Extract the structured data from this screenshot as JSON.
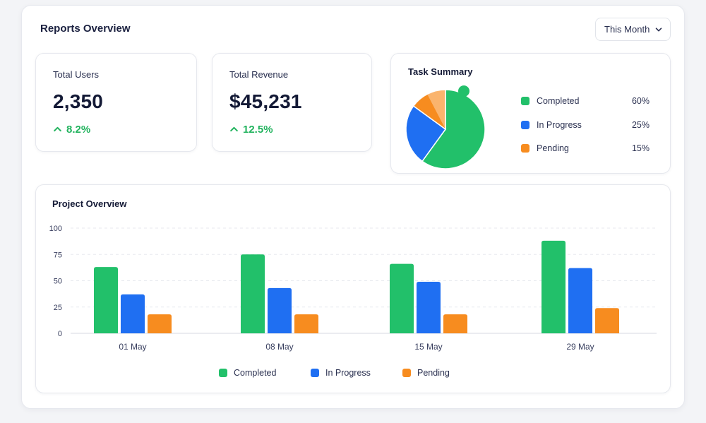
{
  "header": {
    "title": "Reports Overview"
  },
  "period_filter": {
    "value": "This Month"
  },
  "stats": [
    {
      "label": "Total Users",
      "value": "2,350",
      "change": "8.2%"
    },
    {
      "label": "Total Revenue",
      "value": "$45,231",
      "change": "12.5%"
    }
  ],
  "task_summary": {
    "title": "Task Summary",
    "items": [
      {
        "label": "Completed",
        "percent": "60%",
        "value": 60,
        "color": "#22c06a"
      },
      {
        "label": "In Progress",
        "percent": "25%",
        "value": 25,
        "color": "#1f6ff2"
      },
      {
        "label": "Pending",
        "percent": "15%",
        "value": 15,
        "color": "#f78c1f"
      }
    ]
  },
  "project_overview": {
    "title": "Project Overview",
    "legend": [
      "Completed",
      "In Progress",
      "Pending"
    ]
  },
  "chart_data": {
    "type": "bar",
    "categories": [
      "01 May",
      "08 May",
      "15 May",
      "29 May"
    ],
    "series": [
      {
        "name": "Completed",
        "values": [
          63,
          75,
          66,
          88
        ],
        "color": "#22c06a"
      },
      {
        "name": "In Progress",
        "values": [
          37,
          43,
          49,
          62
        ],
        "color": "#1f6ff2"
      },
      {
        "name": "Pending",
        "values": [
          18,
          18,
          18,
          24
        ],
        "color": "#f78c1f"
      }
    ],
    "ylim": [
      0,
      100
    ],
    "yticks": [
      0,
      25,
      50,
      75,
      100
    ],
    "grid": true,
    "legend_position": "bottom"
  }
}
